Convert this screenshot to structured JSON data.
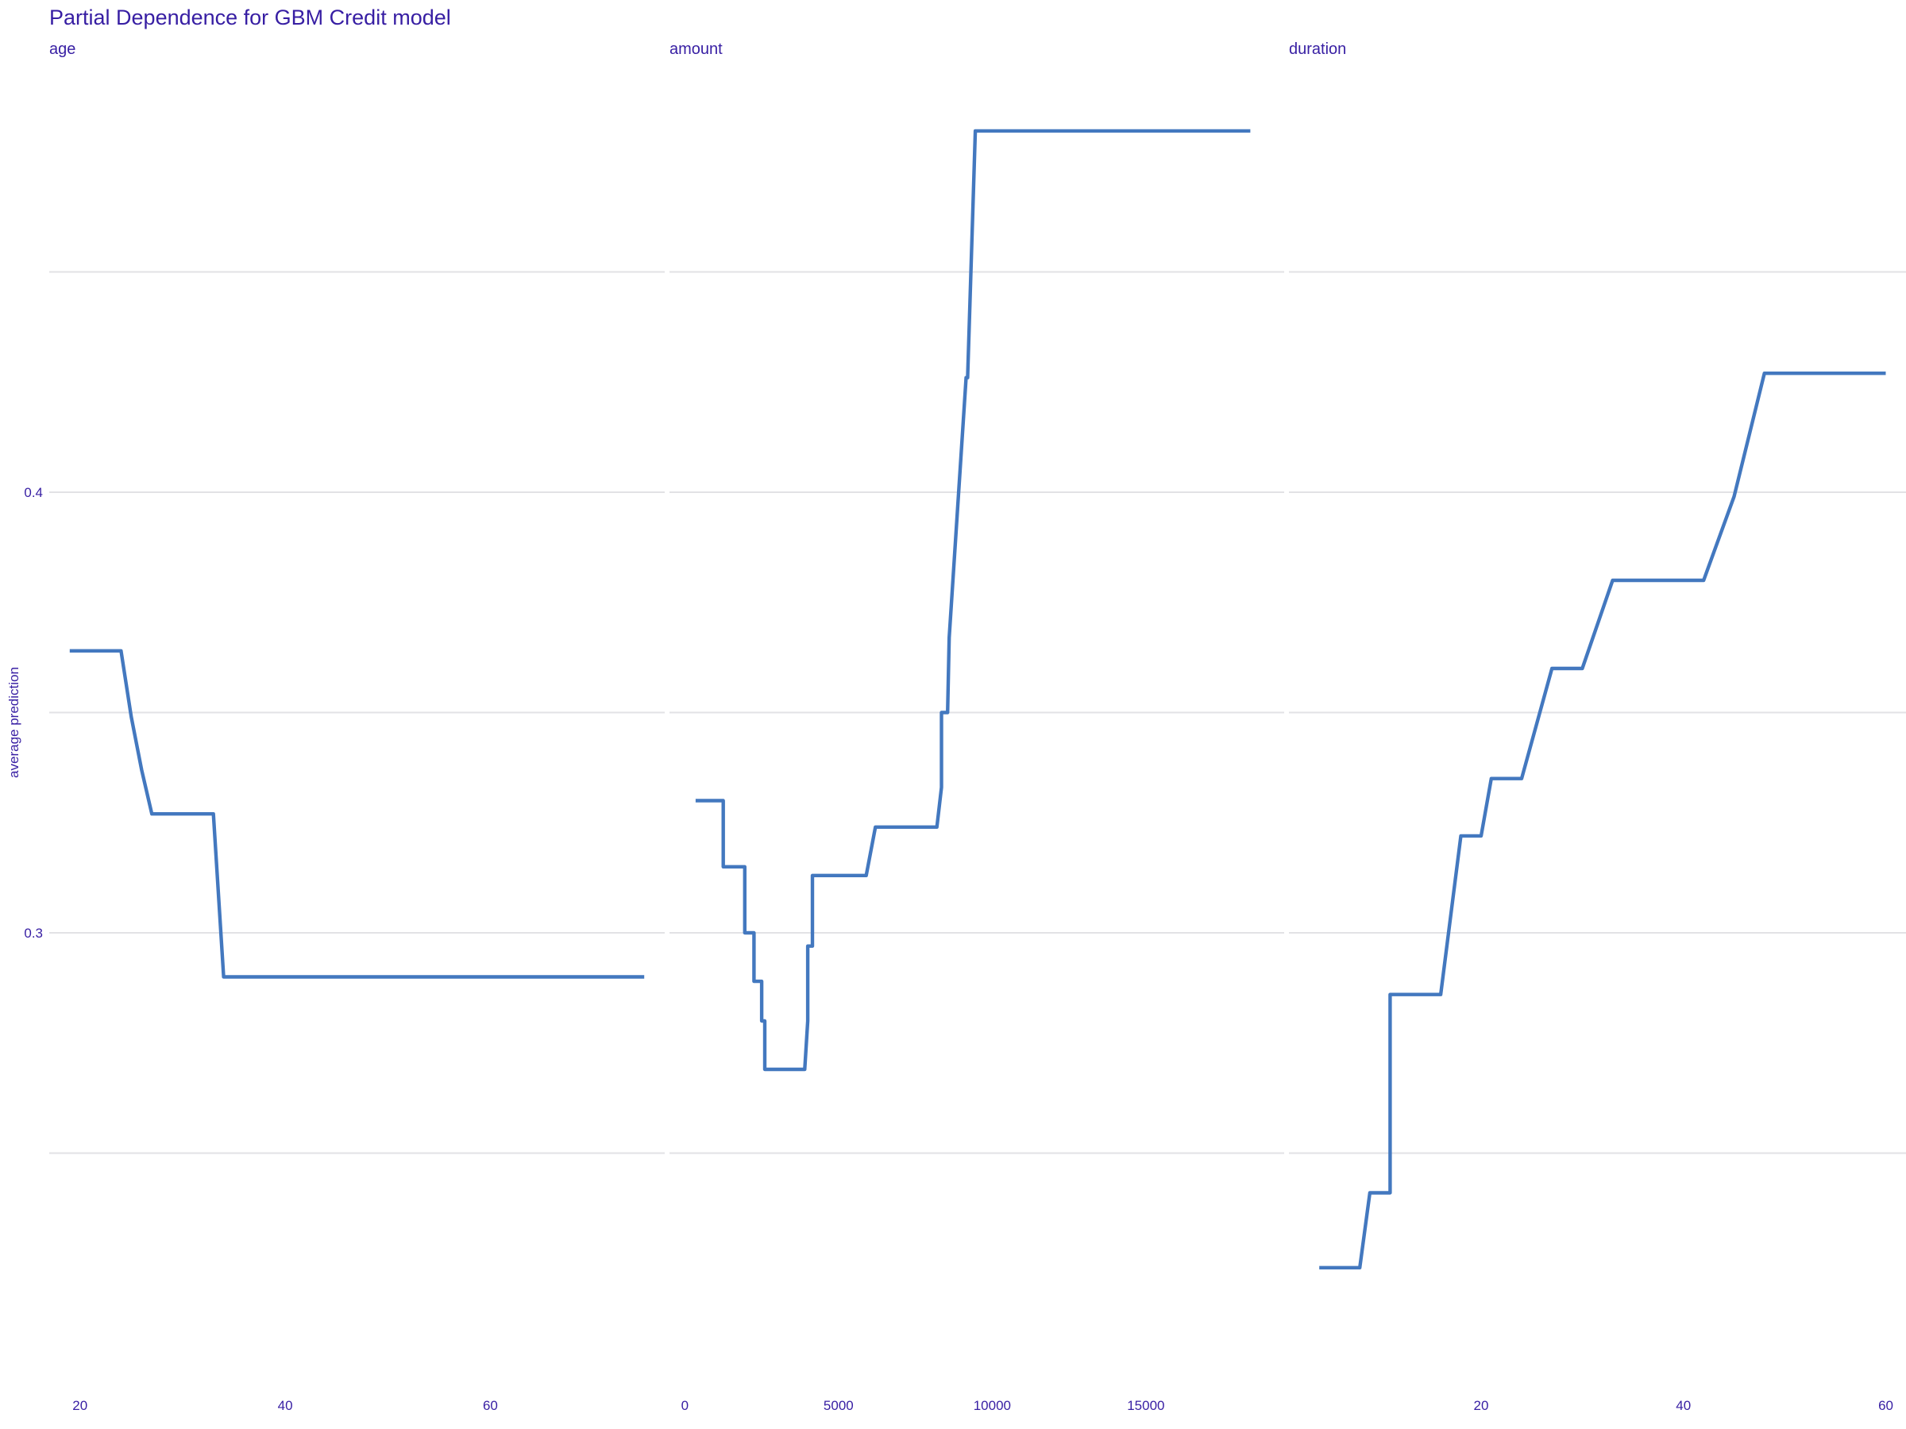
{
  "chart_data": {
    "type": "line",
    "title": "Partial Dependence for GBM Credit model",
    "ylabel": "average prediction",
    "ylim": [
      0.2,
      0.5
    ],
    "yticks": [
      0.3,
      0.4
    ],
    "y_gridlines": [
      0.25,
      0.3,
      0.35,
      0.4,
      0.45
    ],
    "grid": true,
    "legend": "none",
    "line_color": "#4378bf",
    "text_color": "#371ea3",
    "panels": [
      {
        "name": "age",
        "xlim": [
          17,
          77
        ],
        "xticks": [
          20,
          40,
          60
        ],
        "x": [
          19,
          24,
          25,
          26,
          27,
          28,
          33,
          34,
          75
        ],
        "y": [
          0.364,
          0.364,
          0.349,
          0.337,
          0.327,
          0.327,
          0.327,
          0.29,
          0.29
        ]
      },
      {
        "name": "amount",
        "xlim": [
          -500,
          19500
        ],
        "xticks": [
          0,
          5000,
          10000,
          15000
        ],
        "x": [
          350,
          1250,
          1250,
          1950,
          1950,
          2250,
          2250,
          2500,
          2500,
          2600,
          2600,
          3900,
          4000,
          4000,
          4150,
          4150,
          5900,
          6200,
          8200,
          8350,
          8350,
          8550,
          8600,
          9150,
          9200,
          9450,
          9550,
          18400
        ],
        "y": [
          0.33,
          0.33,
          0.315,
          0.315,
          0.3,
          0.3,
          0.289,
          0.289,
          0.28,
          0.28,
          0.269,
          0.269,
          0.28,
          0.297,
          0.297,
          0.313,
          0.313,
          0.324,
          0.324,
          0.333,
          0.35,
          0.35,
          0.367,
          0.426,
          0.426,
          0.482,
          0.482,
          0.482
        ]
      },
      {
        "name": "duration",
        "xlim": [
          1,
          62
        ],
        "xticks": [
          20,
          40,
          60
        ],
        "x": [
          4,
          8,
          9,
          11,
          11,
          12,
          16,
          18,
          20,
          21,
          24,
          27,
          30,
          33,
          39,
          42,
          45,
          48,
          60
        ],
        "y": [
          0.224,
          0.224,
          0.241,
          0.241,
          0.286,
          0.286,
          0.286,
          0.322,
          0.322,
          0.335,
          0.335,
          0.36,
          0.36,
          0.38,
          0.38,
          0.38,
          0.399,
          0.427,
          0.427
        ]
      }
    ]
  }
}
